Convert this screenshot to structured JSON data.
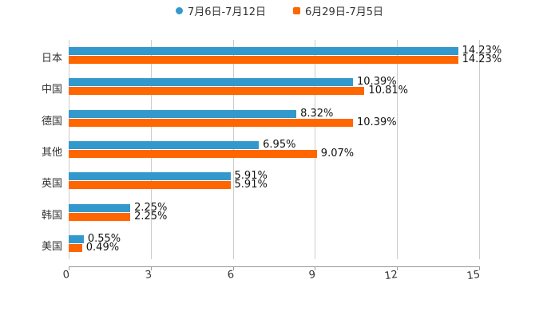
{
  "chart_data": {
    "type": "bar",
    "orientation": "horizontal",
    "title": "",
    "xlabel": "",
    "ylabel": "",
    "xlim": [
      0,
      15
    ],
    "x_ticks": [
      "0",
      "3",
      "6",
      "9",
      "12",
      "15"
    ],
    "grid": true,
    "legend_position": "top",
    "categories": [
      "日本",
      "中国",
      "德国",
      "其他",
      "英国",
      "韩国",
      "美国"
    ],
    "series": [
      {
        "name": "7月6日-7月12日",
        "color": "#3399cc",
        "values": [
          14.23,
          10.39,
          8.32,
          6.95,
          5.91,
          2.25,
          0.55
        ],
        "labels": [
          "14.23%",
          "10.39%",
          "8.32%",
          "6.95%",
          "5.91%",
          "2.25%",
          "0.55%"
        ]
      },
      {
        "name": "6月29日-7月5日",
        "color": "#ff6600",
        "values": [
          14.23,
          10.81,
          10.39,
          9.07,
          5.91,
          2.25,
          0.49
        ],
        "labels": [
          "14.23%",
          "10.81%",
          "10.39%",
          "9.07%",
          "5.91%",
          "2.25%",
          "0.49%"
        ]
      }
    ]
  },
  "legend": {
    "items": [
      {
        "label": "7月6日-7月12日",
        "color": "#3399cc",
        "marker": "circle"
      },
      {
        "label": "6月29日-7月5日",
        "color": "#ff6600",
        "marker": "square"
      }
    ]
  }
}
